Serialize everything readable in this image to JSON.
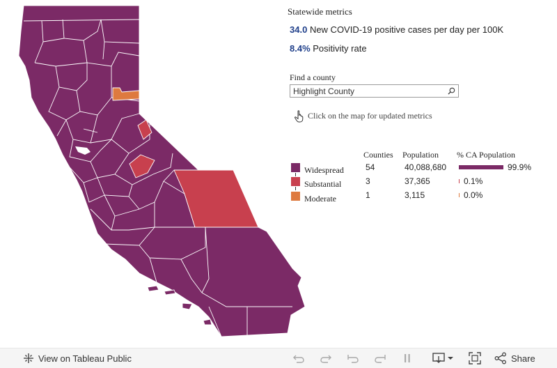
{
  "statewide": {
    "title": "Statewide metrics",
    "metrics": [
      {
        "value": "34.0",
        "label": "New COVID-19 positive cases per day per 100K"
      },
      {
        "value": "8.4%",
        "label": "Positivity rate"
      }
    ]
  },
  "search": {
    "label": "Find a county",
    "placeholder": "Highlight County"
  },
  "hint": "Click on the map for updated metrics",
  "table": {
    "headers": {
      "counties": "Counties",
      "population": "Population",
      "pct": "% CA Population"
    },
    "rows": [
      {
        "tier": "Widespread",
        "color": "#7b2a66",
        "counties": "54",
        "population": "40,088,680",
        "pct_label": "99.9%",
        "pct_value": 99.9
      },
      {
        "tier": "Substantial",
        "color": "#c8404e",
        "counties": "3",
        "population": "37,365",
        "pct_label": "0.1%",
        "pct_value": 0.1
      },
      {
        "tier": "Moderate",
        "color": "#de7a3f",
        "counties": "1",
        "population": "3,115",
        "pct_label": "0.0%",
        "pct_value": 0.0
      }
    ]
  },
  "colors": {
    "widespread": "#7b2a66",
    "substantial": "#c8404e",
    "moderate": "#de7a3f",
    "metric_value": "#1f3f8a"
  },
  "toolbar": {
    "view_label": "View on Tableau Public",
    "share_label": "Share",
    "icons": [
      "tableau-logo-icon",
      "undo-icon",
      "redo-icon",
      "revert-icon",
      "forward-icon",
      "pause-icon",
      "download-icon",
      "fullscreen-icon",
      "share-icon"
    ]
  }
}
